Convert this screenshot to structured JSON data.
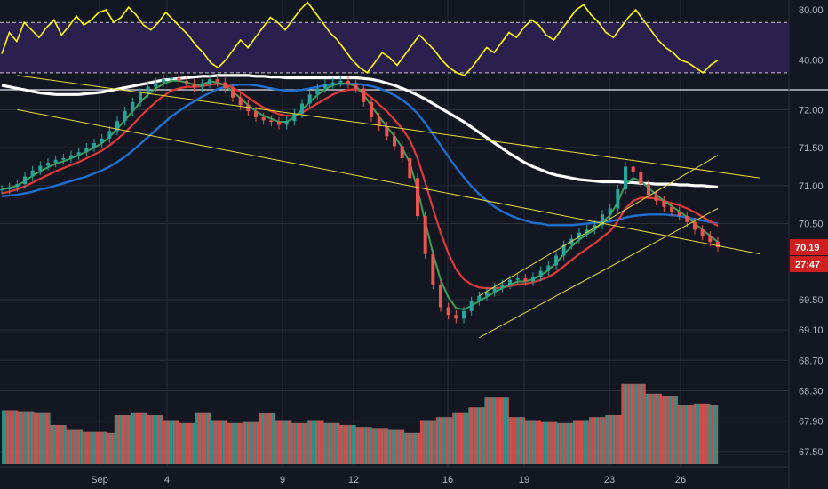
{
  "chart_data": {
    "type": "candlestick",
    "colors": {
      "background": "#131722",
      "grid": "#2a2e39",
      "rsi_line": "#ffff00",
      "rsi_band": "#2a1f4d",
      "sma_white": "#ffffff",
      "sma_blue": "#1e6fd0",
      "ema_red": "#e03a3a",
      "ema_green": "#3aa05a",
      "trendline": "#e6d93a",
      "up": "#26a69a",
      "down": "#ef5350",
      "price_badge": "#d01f1f",
      "axis_text": "#b2b5be"
    },
    "x_ticks": [
      {
        "label": "Sep",
        "day": 1
      },
      {
        "label": "4",
        "day": 4
      },
      {
        "label": "9",
        "day": 9
      },
      {
        "label": "12",
        "day": 12
      },
      {
        "label": "16",
        "day": 16
      },
      {
        "label": "19",
        "day": 19
      },
      {
        "label": "23",
        "day": 23
      },
      {
        "label": "26",
        "day": 26
      }
    ],
    "rsi": {
      "ticks": [
        "80.00",
        "40.00"
      ],
      "ylim": [
        20,
        85
      ],
      "levels": [
        70,
        30
      ],
      "values": [
        45,
        62,
        55,
        70,
        64,
        58,
        66,
        72,
        60,
        67,
        75,
        68,
        72,
        78,
        80,
        70,
        74,
        82,
        76,
        68,
        64,
        70,
        78,
        72,
        66,
        60,
        52,
        46,
        38,
        34,
        40,
        48,
        56,
        50,
        58,
        66,
        74,
        70,
        64,
        72,
        80,
        86,
        78,
        70,
        62,
        56,
        48,
        40,
        34,
        30,
        38,
        46,
        42,
        36,
        44,
        52,
        60,
        54,
        48,
        40,
        34,
        30,
        28,
        34,
        42,
        50,
        46,
        54,
        62,
        58,
        66,
        72,
        68,
        60,
        56,
        64,
        72,
        80,
        84,
        76,
        70,
        62,
        58,
        66,
        74,
        80,
        72,
        64,
        56,
        50,
        46,
        40,
        38,
        34,
        30,
        36,
        40
      ]
    },
    "price": {
      "ticks": [
        "72.00",
        "71.50",
        "71.00",
        "70.50",
        "70.19",
        "69.50",
        "69.10",
        "68.70",
        "68.30",
        "67.90",
        "67.50"
      ],
      "ylim": [
        67.3,
        72.25
      ],
      "last_price": "70.19",
      "countdown": "27:47",
      "close": [
        70.95,
        70.98,
        71.02,
        71.12,
        71.2,
        71.26,
        71.3,
        71.34,
        71.36,
        71.4,
        71.44,
        71.5,
        71.56,
        71.62,
        71.72,
        71.85,
        71.98,
        72.1,
        72.22,
        72.3,
        72.36,
        72.4,
        72.42,
        72.38,
        72.34,
        72.3,
        72.34,
        72.4,
        72.36,
        72.28,
        72.16,
        72.06,
        71.98,
        71.9,
        71.86,
        71.84,
        71.8,
        71.85,
        71.95,
        72.08,
        72.2,
        72.28,
        72.34,
        72.36,
        72.38,
        72.34,
        72.28,
        72.1,
        71.9,
        71.78,
        71.65,
        71.52,
        71.36,
        71.1,
        70.6,
        70.1,
        69.7,
        69.4,
        69.3,
        69.25,
        69.35,
        69.48,
        69.55,
        69.6,
        69.66,
        69.7,
        69.76,
        69.78,
        69.74,
        69.8,
        69.88,
        69.95,
        70.08,
        70.22,
        70.3,
        70.38,
        70.42,
        70.48,
        70.62,
        70.7,
        70.95,
        71.25,
        71.18,
        71.02,
        70.88,
        70.8,
        70.72,
        70.66,
        70.6,
        70.52,
        70.42,
        70.34,
        70.26,
        70.19
      ],
      "ema_green": [
        70.95,
        70.97,
        71.0,
        71.06,
        71.13,
        71.19,
        71.24,
        71.29,
        71.32,
        71.36,
        71.4,
        71.45,
        71.5,
        71.56,
        71.64,
        71.75,
        71.86,
        71.98,
        72.1,
        72.2,
        72.28,
        72.34,
        72.38,
        72.38,
        72.36,
        72.33,
        72.33,
        72.37,
        72.36,
        72.32,
        72.24,
        72.15,
        72.06,
        71.98,
        71.92,
        71.88,
        71.84,
        71.84,
        71.9,
        72.0,
        72.1,
        72.19,
        72.27,
        72.32,
        72.35,
        72.34,
        72.31,
        72.2,
        72.05,
        71.91,
        71.78,
        71.65,
        71.5,
        71.3,
        70.95,
        70.52,
        70.11,
        69.76,
        69.53,
        69.39,
        69.37,
        69.42,
        69.48,
        69.54,
        69.6,
        69.65,
        69.7,
        69.74,
        69.74,
        69.77,
        69.82,
        69.89,
        69.98,
        70.1,
        70.2,
        70.29,
        70.36,
        70.42,
        70.52,
        70.61,
        70.78,
        71.02,
        71.1,
        71.06,
        70.97,
        70.88,
        70.8,
        70.73,
        70.66,
        70.59,
        70.5,
        70.42,
        70.34,
        70.26
      ],
      "ema_red": [
        70.9,
        70.92,
        70.95,
        70.99,
        71.04,
        71.09,
        71.14,
        71.19,
        71.23,
        71.27,
        71.31,
        71.36,
        71.41,
        71.46,
        71.53,
        71.61,
        71.7,
        71.8,
        71.91,
        72.01,
        72.1,
        72.18,
        72.25,
        72.28,
        72.3,
        72.3,
        72.31,
        72.33,
        72.34,
        72.33,
        72.29,
        72.23,
        72.16,
        72.09,
        72.03,
        71.98,
        71.94,
        71.92,
        71.92,
        71.96,
        72.02,
        72.08,
        72.14,
        72.2,
        72.24,
        72.26,
        72.27,
        72.23,
        72.16,
        72.07,
        71.98,
        71.87,
        71.75,
        71.6,
        71.36,
        71.04,
        70.7,
        70.38,
        70.11,
        69.9,
        69.77,
        69.7,
        69.66,
        69.65,
        69.65,
        69.66,
        69.68,
        69.7,
        69.71,
        69.73,
        69.76,
        69.8,
        69.86,
        69.94,
        70.02,
        70.1,
        70.17,
        70.24,
        70.32,
        70.4,
        70.53,
        70.7,
        70.8,
        70.84,
        70.84,
        70.83,
        70.8,
        70.77,
        70.74,
        70.7,
        70.65,
        70.59,
        70.53,
        70.47
      ],
      "sma_blue": [
        70.86,
        70.87,
        70.88,
        70.9,
        70.92,
        70.95,
        70.97,
        71.0,
        71.03,
        71.06,
        71.09,
        71.12,
        71.16,
        71.2,
        71.25,
        71.31,
        71.38,
        71.46,
        71.55,
        71.64,
        71.73,
        71.82,
        71.91,
        71.98,
        72.05,
        72.11,
        72.17,
        72.22,
        72.27,
        72.3,
        72.32,
        72.33,
        72.33,
        72.32,
        72.3,
        72.28,
        72.26,
        72.25,
        72.25,
        72.26,
        72.28,
        72.3,
        72.32,
        72.33,
        72.34,
        72.34,
        72.34,
        72.33,
        72.31,
        72.28,
        72.24,
        72.19,
        72.13,
        72.05,
        71.95,
        71.82,
        71.68,
        71.53,
        71.38,
        71.24,
        71.11,
        70.99,
        70.89,
        70.8,
        70.72,
        70.66,
        70.61,
        70.57,
        70.54,
        70.51,
        70.5,
        70.48,
        70.48,
        70.48,
        70.48,
        70.49,
        70.5,
        70.51,
        70.52,
        70.53,
        70.55,
        70.58,
        70.6,
        70.61,
        70.62,
        70.62,
        70.62,
        70.61,
        70.6,
        70.58,
        70.56,
        70.54,
        70.52,
        70.5
      ],
      "sma_white": [
        72.32,
        72.3,
        72.28,
        72.26,
        72.24,
        72.22,
        72.21,
        72.2,
        72.2,
        72.2,
        72.2,
        72.21,
        72.22,
        72.23,
        72.25,
        72.27,
        72.29,
        72.31,
        72.33,
        72.35,
        72.37,
        72.39,
        72.4,
        72.41,
        72.42,
        72.43,
        72.44,
        72.44,
        72.45,
        72.45,
        72.45,
        72.45,
        72.45,
        72.44,
        72.44,
        72.43,
        72.43,
        72.42,
        72.42,
        72.42,
        72.42,
        72.42,
        72.42,
        72.42,
        72.42,
        72.42,
        72.42,
        72.41,
        72.4,
        72.38,
        72.35,
        72.32,
        72.28,
        72.24,
        72.19,
        72.14,
        72.08,
        72.02,
        71.96,
        71.9,
        71.84,
        71.77,
        71.7,
        71.63,
        71.56,
        71.49,
        71.42,
        71.36,
        71.3,
        71.25,
        71.21,
        71.17,
        71.14,
        71.12,
        71.1,
        71.08,
        71.07,
        71.06,
        71.05,
        71.05,
        71.05,
        71.04,
        71.04,
        71.03,
        71.03,
        71.02,
        71.02,
        71.02,
        71.01,
        71.01,
        71.0,
        71.0,
        70.99,
        70.98
      ]
    },
    "trendlines": [
      {
        "name": "upper-resistance",
        "from": [
          2,
          72.45
        ],
        "to": [
          100,
          71.1
        ]
      },
      {
        "name": "lower-support",
        "from": [
          2,
          72.0
        ],
        "to": [
          100,
          70.1
        ]
      },
      {
        "name": "channel-upper",
        "from": [
          62,
          69.55
        ],
        "to": [
          93,
          71.4
        ]
      },
      {
        "name": "channel-lower",
        "from": [
          62,
          69.0
        ],
        "to": [
          93,
          70.7
        ]
      }
    ],
    "volume": {
      "values": [
        55,
        55,
        54,
        54,
        53,
        53,
        40,
        40,
        35,
        35,
        33,
        33,
        33,
        32,
        50,
        50,
        53,
        53,
        50,
        50,
        45,
        45,
        42,
        42,
        53,
        53,
        45,
        45,
        42,
        42,
        43,
        43,
        52,
        52,
        45,
        45,
        42,
        42,
        45,
        45,
        42,
        42,
        40,
        40,
        38,
        38,
        37,
        37,
        35,
        35,
        32,
        32,
        45,
        45,
        48,
        48,
        53,
        53,
        58,
        58,
        68,
        68,
        68,
        48,
        48,
        45,
        45,
        43,
        43,
        42,
        42,
        45,
        45,
        48,
        48,
        50,
        50,
        82,
        82,
        82,
        72,
        72,
        70,
        70,
        60,
        60,
        62,
        62,
        60
      ]
    }
  }
}
